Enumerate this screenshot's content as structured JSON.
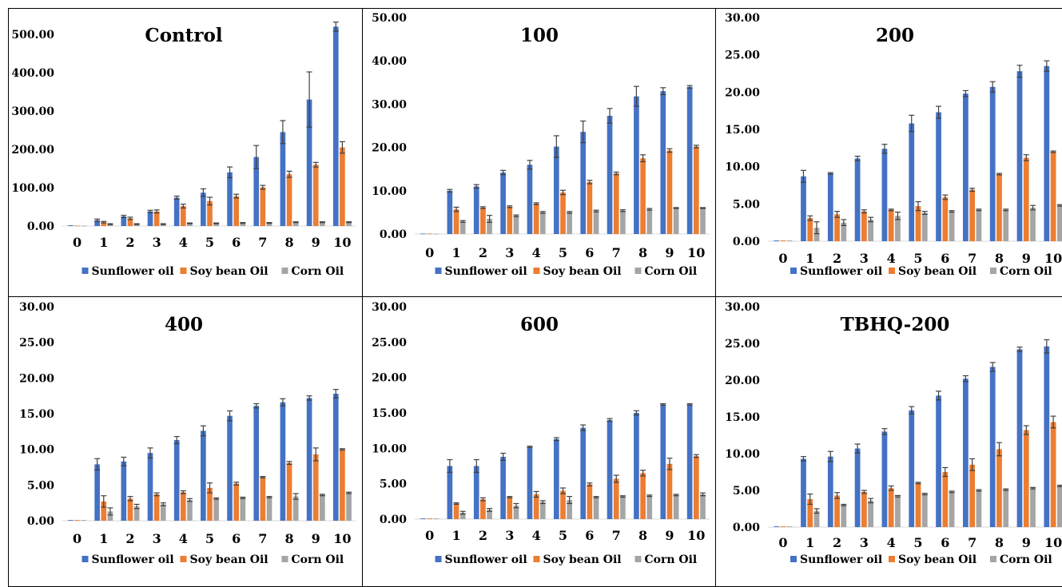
{
  "colors": {
    "sunflower": "#4472C4",
    "soybean": "#ED7D31",
    "corn": "#A5A5A5",
    "error_bar": "#404040"
  },
  "series_names": [
    "Sunflower oil",
    "Soy bean Oil",
    "Corn Oil"
  ],
  "chart_data": [
    {
      "type": "bar",
      "title": "Control",
      "categories": [
        "0",
        "1",
        "2",
        "3",
        "4",
        "5",
        "6",
        "7",
        "8",
        "9",
        "10"
      ],
      "ylim": [
        0,
        500
      ],
      "yticks": [
        "0.00",
        "100.00",
        "200.00",
        "300.00",
        "400.00",
        "500.00"
      ],
      "legend": "bottom",
      "series": [
        {
          "name": "Sunflower oil",
          "values": [
            2,
            15,
            25,
            38,
            74,
            87,
            140,
            180,
            245,
            330,
            520
          ],
          "errors": [
            0,
            3,
            3,
            3,
            4,
            10,
            14,
            30,
            30,
            72,
            12
          ]
        },
        {
          "name": "Soy bean Oil",
          "values": [
            1,
            10,
            20,
            38,
            52,
            65,
            78,
            101,
            135,
            160,
            205
          ],
          "errors": [
            0,
            2,
            3,
            4,
            5,
            10,
            5,
            5,
            8,
            6,
            15
          ]
        },
        {
          "name": "Corn Oil",
          "values": [
            1,
            5,
            5,
            5,
            7,
            7,
            8,
            8,
            10,
            10,
            10
          ],
          "errors": [
            0,
            1,
            1,
            1,
            1,
            1,
            1,
            1,
            1,
            1,
            1
          ]
        }
      ]
    },
    {
      "type": "bar",
      "title": "100",
      "categories": [
        "0",
        "1",
        "2",
        "3",
        "4",
        "5",
        "6",
        "7",
        "8",
        "9",
        "10"
      ],
      "ylim": [
        0,
        50
      ],
      "yticks": [
        "0.00",
        "10.00",
        "20.00",
        "30.00",
        "40.00",
        "50.00"
      ],
      "legend": "bottom",
      "series": [
        {
          "name": "Sunflower oil",
          "values": [
            0.1,
            10,
            11,
            14.2,
            16,
            20.2,
            23.6,
            27.3,
            31.8,
            33,
            34
          ],
          "errors": [
            0,
            0.3,
            0.4,
            0.5,
            1,
            2.5,
            2.5,
            1.7,
            2.3,
            0.8,
            0.3
          ]
        },
        {
          "name": "Soy bean Oil",
          "values": [
            0.1,
            5.7,
            6.1,
            6.3,
            7,
            9.6,
            12,
            14,
            17.5,
            19.3,
            20.2
          ],
          "errors": [
            0,
            0.5,
            0.2,
            0.2,
            0.2,
            0.5,
            0.4,
            0.3,
            0.8,
            0.4,
            0.3
          ]
        },
        {
          "name": "Corn Oil",
          "values": [
            0.1,
            2.9,
            3.5,
            4.2,
            5,
            5,
            5.3,
            5.4,
            5.7,
            6,
            6
          ],
          "errors": [
            0,
            0.2,
            0.8,
            0.2,
            0.2,
            0.2,
            0.2,
            0.2,
            0.2,
            0.1,
            0.1
          ]
        }
      ]
    },
    {
      "type": "bar",
      "title": "200",
      "categories": [
        "0",
        "1",
        "2",
        "3",
        "4",
        "5",
        "6",
        "7",
        "8",
        "9",
        "10"
      ],
      "ylim": [
        0,
        30
      ],
      "yticks": [
        "0.00",
        "5.00",
        "10.00",
        "15.00",
        "20.00",
        "25.00",
        "30.00"
      ],
      "legend": "bottom",
      "series": [
        {
          "name": "Sunflower oil",
          "values": [
            0.1,
            8.7,
            9.1,
            11.1,
            12.4,
            15.8,
            17.3,
            19.8,
            20.7,
            22.8,
            23.5
          ],
          "errors": [
            0,
            0.8,
            0.1,
            0.3,
            0.6,
            1.1,
            0.8,
            0.4,
            0.7,
            0.8,
            0.7
          ]
        },
        {
          "name": "Soy bean Oil",
          "values": [
            0.1,
            3.1,
            3.6,
            4,
            4.2,
            4.7,
            5.9,
            6.9,
            9,
            11.2,
            12
          ],
          "errors": [
            0,
            0.3,
            0.4,
            0.2,
            0.1,
            0.6,
            0.3,
            0.2,
            0.1,
            0.4,
            0.1
          ]
        },
        {
          "name": "Corn Oil",
          "values": [
            0.1,
            1.8,
            2.5,
            2.9,
            3.4,
            3.8,
            4,
            4.2,
            4.2,
            4.5,
            4.8
          ],
          "errors": [
            0,
            0.8,
            0.4,
            0.3,
            0.5,
            0.2,
            0.1,
            0.1,
            0.1,
            0.3,
            0.1
          ]
        }
      ]
    },
    {
      "type": "bar",
      "title": "400",
      "categories": [
        "0",
        "1",
        "2",
        "3",
        "4",
        "5",
        "6",
        "7",
        "8",
        "9",
        "10"
      ],
      "ylim": [
        0,
        30
      ],
      "yticks": [
        "0.00",
        "5.00",
        "10.00",
        "15.00",
        "20.00",
        "25.00",
        "30.00"
      ],
      "legend": "bottom",
      "series": [
        {
          "name": "Sunflower oil",
          "values": [
            0.1,
            7.9,
            8.3,
            9.5,
            11.3,
            12.6,
            14.7,
            16.1,
            16.6,
            17.2,
            17.8
          ],
          "errors": [
            0,
            0.8,
            0.6,
            0.7,
            0.5,
            0.7,
            0.7,
            0.3,
            0.5,
            0.3,
            0.6
          ]
        },
        {
          "name": "Soy bean Oil",
          "values": [
            0.1,
            2.7,
            3.1,
            3.7,
            4,
            4.6,
            5.2,
            6.1,
            8.1,
            9.3,
            10
          ],
          "errors": [
            0,
            0.8,
            0.3,
            0.2,
            0.2,
            0.7,
            0.2,
            0.1,
            0.2,
            0.9,
            0.1
          ]
        },
        {
          "name": "Corn Oil",
          "values": [
            0.1,
            1.3,
            2,
            2.3,
            2.9,
            3.1,
            3.2,
            3.3,
            3.4,
            3.6,
            3.9
          ],
          "errors": [
            0,
            0.5,
            0.3,
            0.2,
            0.2,
            0.1,
            0.1,
            0.1,
            0.4,
            0.1,
            0.1
          ]
        }
      ]
    },
    {
      "type": "bar",
      "title": "600",
      "categories": [
        "0",
        "1",
        "2",
        "3",
        "4",
        "5",
        "6",
        "7",
        "8",
        "9",
        "10"
      ],
      "ylim": [
        0,
        30
      ],
      "yticks": [
        "0.00",
        "5.00",
        "10.00",
        "15.00",
        "20.00",
        "25.00",
        "30.00"
      ],
      "legend": "bottom",
      "series": [
        {
          "name": "Sunflower oil",
          "values": [
            0.1,
            7.5,
            7.5,
            8.8,
            10.2,
            11.3,
            12.9,
            14,
            15,
            16.2,
            16.2
          ],
          "errors": [
            0,
            0.9,
            0.9,
            0.5,
            0.1,
            0.2,
            0.4,
            0.2,
            0.3,
            0.1,
            0.1
          ]
        },
        {
          "name": "Soy bean Oil",
          "values": [
            0.1,
            2.2,
            2.8,
            3.1,
            3.5,
            4,
            4.9,
            5.7,
            6.5,
            7.8,
            8.9
          ],
          "errors": [
            0,
            0.1,
            0.2,
            0.1,
            0.4,
            0.4,
            0.2,
            0.5,
            0.4,
            0.8,
            0.2
          ]
        },
        {
          "name": "Corn Oil",
          "values": [
            0.1,
            0.9,
            1.3,
            1.9,
            2.4,
            2.7,
            3.1,
            3.2,
            3.3,
            3.4,
            3.5
          ],
          "errors": [
            0,
            0.2,
            0.2,
            0.3,
            0.2,
            0.5,
            0.1,
            0.1,
            0.1,
            0.1,
            0.2
          ]
        }
      ]
    },
    {
      "type": "bar",
      "title": "TBHQ-200",
      "categories": [
        "0",
        "1",
        "2",
        "3",
        "4",
        "5",
        "6",
        "7",
        "8",
        "9",
        "10"
      ],
      "ylim": [
        0,
        30
      ],
      "yticks": [
        "0.00",
        "5.00",
        "10.00",
        "15.00",
        "20.00",
        "25.00",
        "30.00"
      ],
      "legend": "bottom",
      "series": [
        {
          "name": "Sunflower oil",
          "values": [
            0.1,
            9.3,
            9.6,
            10.7,
            13,
            15.9,
            17.9,
            20.2,
            21.8,
            24.2,
            24.6
          ],
          "errors": [
            0,
            0.3,
            0.7,
            0.6,
            0.4,
            0.5,
            0.6,
            0.4,
            0.6,
            0.3,
            0.9
          ]
        },
        {
          "name": "Soy bean Oil",
          "values": [
            0.1,
            3.8,
            4.3,
            4.8,
            5.3,
            6,
            7.5,
            8.5,
            10.6,
            13.2,
            14.3
          ],
          "errors": [
            0,
            0.7,
            0.4,
            0.2,
            0.3,
            0.1,
            0.6,
            0.8,
            0.9,
            0.6,
            0.8
          ]
        },
        {
          "name": "Corn Oil",
          "values": [
            0.1,
            2.2,
            3,
            3.6,
            4.2,
            4.5,
            4.8,
            5,
            5.1,
            5.3,
            5.6
          ],
          "errors": [
            0,
            0.3,
            0.1,
            0.3,
            0.1,
            0.1,
            0.1,
            0.1,
            0.1,
            0.1,
            0.1
          ]
        }
      ]
    }
  ]
}
